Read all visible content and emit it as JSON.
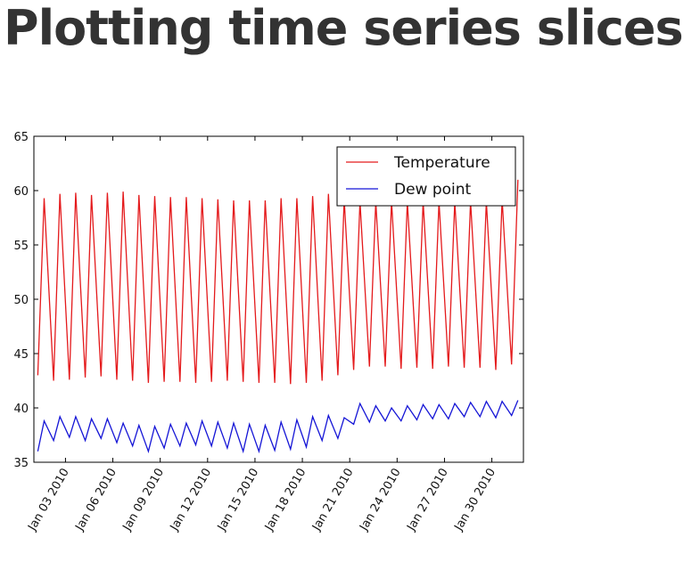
{
  "header": {
    "title": "Plotting time series slices"
  },
  "chart_data": {
    "type": "line",
    "x": [
      1.25,
      1.65,
      2.25,
      2.65,
      3.25,
      3.65,
      4.25,
      4.65,
      5.25,
      5.65,
      6.25,
      6.65,
      7.25,
      7.65,
      8.25,
      8.65,
      9.25,
      9.65,
      10.25,
      10.65,
      11.25,
      11.65,
      12.25,
      12.65,
      13.25,
      13.65,
      14.25,
      14.65,
      15.25,
      15.65,
      16.25,
      16.65,
      17.25,
      17.65,
      18.25,
      18.65,
      19.25,
      19.65,
      20.25,
      20.65,
      21.25,
      21.65,
      22.25,
      22.65,
      23.25,
      23.65,
      24.25,
      24.65,
      25.25,
      25.65,
      26.25,
      26.65,
      27.25,
      27.65,
      28.25,
      28.65,
      29.25,
      29.65,
      30.25,
      30.65,
      31.25,
      31.65
    ],
    "series": [
      {
        "name": "Temperature",
        "color": "#e41a1c",
        "values": [
          43,
          59.3,
          42.5,
          59.7,
          42.6,
          59.8,
          42.8,
          59.6,
          42.9,
          59.8,
          42.6,
          59.9,
          42.5,
          59.6,
          42.3,
          59.5,
          42.4,
          59.4,
          42.4,
          59.4,
          42.3,
          59.3,
          42.4,
          59.2,
          42.5,
          59.1,
          42.4,
          59.1,
          42.3,
          59.1,
          42.3,
          59.3,
          42.2,
          59.3,
          42.3,
          59.5,
          42.5,
          59.7,
          43,
          59.2,
          43.5,
          59,
          43.8,
          59,
          43.8,
          59,
          43.6,
          59,
          43.7,
          59,
          43.6,
          59,
          43.8,
          59,
          43.7,
          59,
          43.7,
          59,
          43.5,
          59.2,
          44,
          61
        ]
      },
      {
        "name": "Dew point",
        "color": "#1515d6",
        "values": [
          36,
          38.8,
          37,
          39.2,
          37.3,
          39.2,
          37,
          39,
          37.2,
          39,
          36.8,
          38.6,
          36.5,
          38.4,
          36,
          38.3,
          36.3,
          38.5,
          36.5,
          38.6,
          36.6,
          38.8,
          36.5,
          38.7,
          36.3,
          38.6,
          36,
          38.5,
          36,
          38.4,
          36.1,
          38.7,
          36.2,
          38.9,
          36.4,
          39.2,
          37,
          39.3,
          37.2,
          39.1,
          38.5,
          40.4,
          38.7,
          40.2,
          38.8,
          40,
          38.8,
          40.2,
          38.9,
          40.3,
          39,
          40.3,
          39,
          40.4,
          39.2,
          40.5,
          39.2,
          40.6,
          39.1,
          40.6,
          39.3,
          40.7
        ]
      }
    ],
    "xlim": [
      1,
      32
    ],
    "xticks": [
      {
        "value": 3,
        "label": "Jan 03 2010"
      },
      {
        "value": 6,
        "label": "Jan 06 2010"
      },
      {
        "value": 9,
        "label": "Jan 09 2010"
      },
      {
        "value": 12,
        "label": "Jan 12 2010"
      },
      {
        "value": 15,
        "label": "Jan 15 2010"
      },
      {
        "value": 18,
        "label": "Jan 18 2010"
      },
      {
        "value": 21,
        "label": "Jan 21 2010"
      },
      {
        "value": 24,
        "label": "Jan 24 2010"
      },
      {
        "value": 27,
        "label": "Jan 27 2010"
      },
      {
        "value": 30,
        "label": "Jan 30 2010"
      }
    ],
    "ylim": [
      35,
      65
    ],
    "yticks": [
      35,
      40,
      45,
      50,
      55,
      60,
      65
    ],
    "legend": "upper right"
  }
}
